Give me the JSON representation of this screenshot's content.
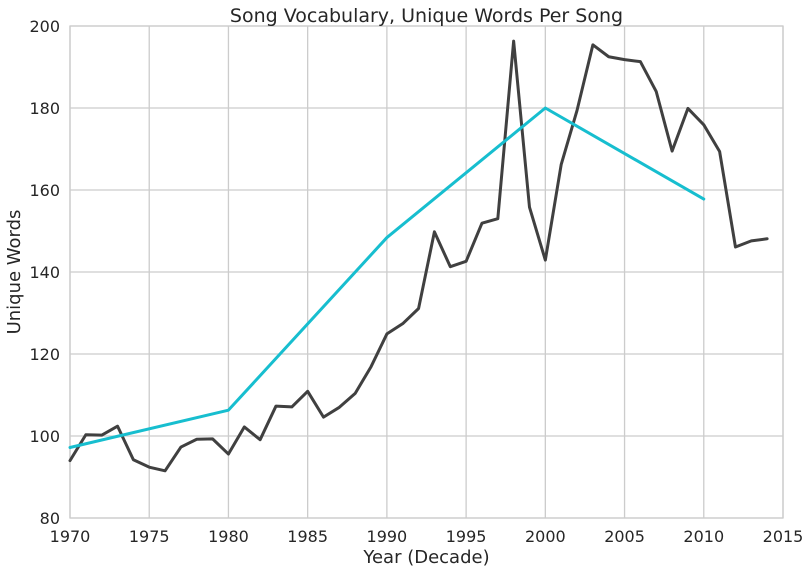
{
  "chart_data": {
    "type": "line",
    "title": "Song Vocabulary, Unique Words Per Song",
    "xlabel": "Year (Decade)",
    "ylabel": "Unique Words",
    "xlim": [
      1970,
      2015
    ],
    "ylim": [
      80,
      200
    ],
    "x_ticks": [
      1970,
      1975,
      1980,
      1985,
      1990,
      1995,
      2000,
      2005,
      2010,
      2015
    ],
    "y_ticks": [
      80,
      100,
      120,
      140,
      160,
      180,
      200
    ],
    "grid": true,
    "legend": "none",
    "series": [
      {
        "color": "#404040",
        "x": [
          1970,
          1971,
          1972,
          1973,
          1974,
          1975,
          1976,
          1977,
          1978,
          1979,
          1980,
          1981,
          1982,
          1983,
          1984,
          1985,
          1986,
          1987,
          1988,
          1989,
          1990,
          1991,
          1992,
          1993,
          1994,
          1995,
          1996,
          1997,
          1998,
          1999,
          2000,
          2001,
          2002,
          2003,
          2004,
          2005,
          2006,
          2007,
          2008,
          2009,
          2010,
          2011,
          2012,
          2013,
          2014
        ],
        "values": [
          94,
          100.3,
          100.2,
          102.4,
          94.2,
          92.4,
          91.5,
          97.3,
          99.2,
          99.3,
          95.6,
          102.2,
          99.1,
          107.3,
          107.1,
          110.9,
          104.6,
          107,
          110.4,
          116.9,
          124.9,
          127.4,
          131.1,
          149.8,
          141.3,
          142.6,
          151.9,
          153,
          196.3,
          155.8,
          142.9,
          166.2,
          179.4,
          195.4,
          192.5,
          191.8,
          191.3,
          184,
          169.5,
          179.9,
          175.9,
          169.4,
          146.1,
          147.6,
          148.1
        ]
      },
      {
        "color": "#17becf",
        "x": [
          1970,
          1980,
          1990,
          2000,
          2010
        ],
        "values": [
          97.2,
          106.3,
          148.4,
          180,
          157.8
        ]
      }
    ]
  }
}
